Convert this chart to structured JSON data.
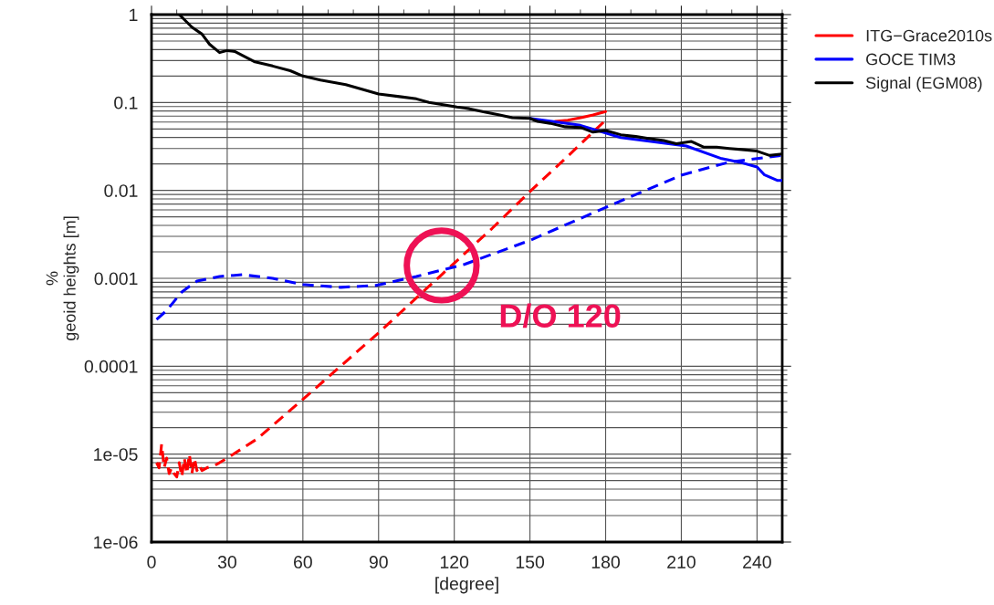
{
  "chart_data": {
    "type": "line",
    "xlabel": "[degree]",
    "ylabel": "%\ngeoid heights [m]",
    "log": "y",
    "xlim": [
      0,
      250
    ],
    "xticks": [
      0,
      30,
      60,
      90,
      120,
      150,
      180,
      210,
      240
    ],
    "ylim": [
      1e-06,
      1
    ],
    "yticks": [
      1e-06,
      1e-05,
      0.0001,
      0.001,
      0.01,
      0.1,
      1
    ],
    "grid": true,
    "legend": "top right",
    "series": [
      {
        "name": "ITG−Grace2010s",
        "color": "#ff0000",
        "line_style": "solid",
        "x": [
          160,
          165,
          171,
          175,
          180
        ],
        "values": [
          0.061,
          0.063,
          0.068,
          0.072,
          0.079
        ]
      },
      {
        "color": "#ff0000",
        "line_style": "dashed",
        "x": [
          2,
          3,
          4,
          5,
          6,
          7,
          8,
          9,
          10,
          11,
          12,
          13,
          14,
          15,
          16,
          17,
          18,
          19,
          20,
          22,
          25,
          30,
          42,
          60,
          90,
          115,
          135,
          150,
          164,
          180
        ],
        "values": [
          8e-06,
          7e-06,
          1.3e-05,
          7e-06,
          9e-06,
          6e-06,
          7e-06,
          6e-06,
          5.5e-06,
          8e-06,
          5.5e-06,
          9e-06,
          6e-06,
          1e-05,
          6e-06,
          9e-06,
          6.5e-06,
          7.5e-06,
          6.5e-06,
          7e-06,
          7.4e-06,
          9e-06,
          1.5e-05,
          4.2e-05,
          0.00024,
          0.0011,
          0.0037,
          0.0097,
          0.023,
          0.063
        ]
      },
      {
        "name": "GOCE TIM3",
        "color": "#0000ff",
        "line_style": "solid",
        "x": [
          150,
          170,
          186,
          205,
          212,
          226,
          233,
          240,
          243,
          248,
          250
        ],
        "values": [
          0.066,
          0.055,
          0.04,
          0.034,
          0.032,
          0.023,
          0.021,
          0.0185,
          0.015,
          0.013,
          0.013
        ]
      },
      {
        "color": "#0000ff",
        "line_style": "dashed",
        "x": [
          2,
          6,
          12,
          18,
          27,
          36,
          48,
          60,
          75,
          89,
          105,
          124,
          150,
          180,
          210,
          229,
          250
        ],
        "values": [
          0.00034,
          0.00043,
          0.0007,
          0.00093,
          0.00105,
          0.0011,
          0.001,
          0.00085,
          0.00079,
          0.00083,
          0.00105,
          0.00144,
          0.0027,
          0.0064,
          0.0149,
          0.021,
          0.025
        ]
      },
      {
        "name": "Signal (EGM08)",
        "color": "#000000",
        "line_style": "solid",
        "x": [
          11,
          16,
          20,
          23,
          27,
          30,
          33,
          41,
          48,
          55,
          60,
          67,
          77,
          84,
          90,
          99,
          105,
          110,
          115,
          121,
          126,
          132,
          138,
          143,
          150,
          153,
          158,
          164,
          170,
          175,
          180,
          186,
          192,
          197,
          203,
          208,
          214,
          219,
          224,
          229,
          235,
          240,
          245,
          250
        ],
        "values": [
          1,
          0.72,
          0.6,
          0.46,
          0.37,
          0.39,
          0.38,
          0.29,
          0.26,
          0.23,
          0.2,
          0.18,
          0.16,
          0.14,
          0.125,
          0.116,
          0.11,
          0.1,
          0.095,
          0.089,
          0.085,
          0.078,
          0.072,
          0.067,
          0.066,
          0.061,
          0.058,
          0.053,
          0.052,
          0.046,
          0.048,
          0.043,
          0.041,
          0.039,
          0.037,
          0.034,
          0.036,
          0.031,
          0.031,
          0.03,
          0.029,
          0.028,
          0.025,
          0.026
        ]
      }
    ],
    "annotations": [
      {
        "text": "D/O 120",
        "x": 115,
        "y": 0.0014
      }
    ]
  }
}
